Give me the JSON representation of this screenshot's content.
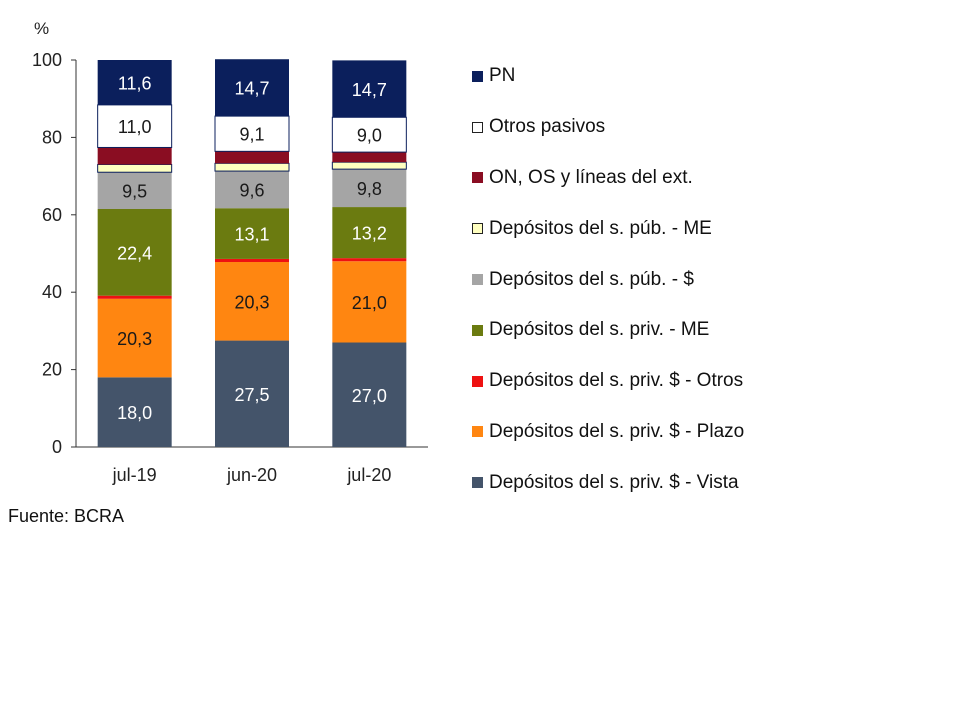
{
  "chart_data": {
    "type": "bar",
    "stacked": true,
    "unit_label": "%",
    "title": "",
    "xlabel": "",
    "ylabel": "",
    "categories": [
      "jul-19",
      "jun-20",
      "jul-20"
    ],
    "ylim": [
      0,
      100
    ],
    "yticks": [
      "0",
      "20",
      "40",
      "60",
      "80",
      "100"
    ],
    "grid": false,
    "legend_position": "right",
    "series": [
      {
        "name": "Depósitos del s. priv. $ - Vista",
        "color": "#44546a",
        "label_color": "#ffffff",
        "values": [
          18.0,
          27.5,
          27.0
        ],
        "labels": [
          "18,0",
          "27,5",
          "27,0"
        ]
      },
      {
        "name": "Depósitos del s. priv. $ - Plazo",
        "color": "#ff8611",
        "label_color": "#1a1a1a",
        "values": [
          20.3,
          20.3,
          21.0
        ],
        "labels": [
          "20,3",
          "20,3",
          "21,0"
        ]
      },
      {
        "name": "Depósitos del s. priv. $ - Otros",
        "color": "#ee1111",
        "label_color": "#1a1a1a",
        "values": [
          0.8,
          0.8,
          0.8
        ],
        "labels": [
          "",
          "",
          ""
        ]
      },
      {
        "name": "Depósitos del s. priv. - ME",
        "color": "#6b7b10",
        "label_color": "#ffffff",
        "values": [
          22.4,
          13.1,
          13.2
        ],
        "labels": [
          "22,4",
          "13,1",
          "13,2"
        ]
      },
      {
        "name": "Depósitos del s. púb. - $",
        "color": "#a5a5a5",
        "label_color": "#1a1a1a",
        "values": [
          9.5,
          9.6,
          9.8
        ],
        "labels": [
          "9,5",
          "9,6",
          "9,8"
        ]
      },
      {
        "name": "Depósitos del s. púb. - ME",
        "color": "#ffffc0",
        "label_color": "#1a1a1a",
        "values": [
          2.0,
          2.0,
          1.8
        ],
        "labels": [
          "",
          "",
          ""
        ]
      },
      {
        "name": "ON, OS y líneas del ext.",
        "color": "#8a0d22",
        "label_color": "#ffffff",
        "values": [
          4.4,
          3.1,
          2.6
        ],
        "labels": [
          "",
          "",
          ""
        ]
      },
      {
        "name": "Otros pasivos",
        "color": "#ffffff",
        "label_color": "#1a1a1a",
        "values": [
          11.0,
          9.1,
          9.0
        ],
        "labels": [
          "11,0",
          "9,1",
          "9,0"
        ]
      },
      {
        "name": "PN",
        "color": "#0b1f5c",
        "label_color": "#ffffff",
        "values": [
          11.6,
          14.7,
          14.7
        ],
        "labels": [
          "11,6",
          "14,7",
          "14,7"
        ]
      }
    ]
  },
  "source_note": "Fuente: BCRA"
}
